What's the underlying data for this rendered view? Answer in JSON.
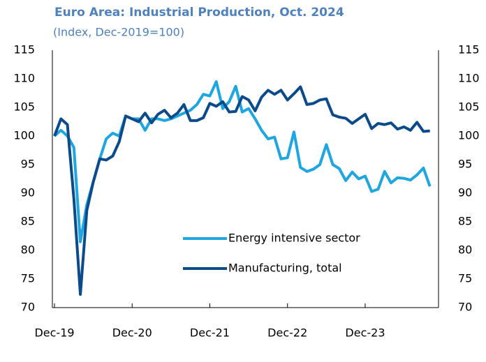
{
  "chart_data": {
    "type": "line",
    "title": "Euro Area: Industrial Production, Oct. 2024",
    "subtitle": "(Index, Dec-2019=100)",
    "categories": [
      "Dec-19",
      null,
      null,
      null,
      null,
      null,
      null,
      null,
      null,
      null,
      null,
      null,
      "Dec-20",
      null,
      null,
      null,
      null,
      null,
      null,
      null,
      null,
      null,
      null,
      null,
      "Dec-21",
      null,
      null,
      null,
      null,
      null,
      null,
      null,
      null,
      null,
      null,
      null,
      "Dec-22",
      null,
      null,
      null,
      null,
      null,
      null,
      null,
      null,
      null,
      null,
      null,
      "Dec-23",
      null,
      null,
      null,
      null,
      null,
      null,
      null,
      null,
      null,
      null
    ],
    "series": [
      {
        "name": "Energy intensive sector",
        "color": "#1ea6e0",
        "values": [
          100,
          101,
          100,
          98,
          81.5,
          88,
          92,
          96,
          99.5,
          100.5,
          100,
          103.5,
          103,
          103,
          101,
          103,
          103,
          102.7,
          103,
          103.5,
          104,
          104.5,
          105.5,
          107.3,
          107,
          109.5,
          104.8,
          106,
          108.7,
          104.2,
          104.8,
          103,
          101,
          99.5,
          99.8,
          96,
          96.2,
          100.7,
          94.5,
          93.8,
          94.2,
          95,
          98.5,
          95,
          94.3,
          92.2,
          93.7,
          92.5,
          93,
          90.3,
          90.7,
          93.8,
          91.8,
          92.7,
          92.6,
          92.3,
          93.2,
          94.4,
          91.2
        ]
      },
      {
        "name": "Manufacturing, total",
        "color": "#0b4b8c",
        "values": [
          100,
          103,
          102,
          89,
          72.3,
          87,
          92,
          96,
          95.8,
          96.5,
          99,
          103.5,
          103,
          102.5,
          104,
          102.3,
          103.8,
          104.5,
          103.2,
          104,
          105.5,
          102.7,
          102.7,
          103.2,
          105.7,
          105.2,
          106,
          104.2,
          104.3,
          106.9,
          106.3,
          104.4,
          106.8,
          108,
          107.3,
          108,
          106.3,
          107.4,
          108.6,
          105.5,
          105.7,
          106.3,
          106.5,
          103.7,
          103.3,
          103.1,
          102.2,
          103,
          103.8,
          101.3,
          102.2,
          102,
          102.3,
          101.2,
          101.6,
          101,
          102.4,
          100.8,
          100.9
        ]
      }
    ],
    "ylim": [
      70,
      115
    ],
    "yticks": [
      70,
      75,
      80,
      85,
      90,
      95,
      100,
      105,
      110,
      115
    ],
    "y2lim": [
      70,
      115
    ],
    "y2ticks": [
      70,
      75,
      80,
      85,
      90,
      95,
      100,
      105,
      110,
      115
    ],
    "grid": false
  }
}
